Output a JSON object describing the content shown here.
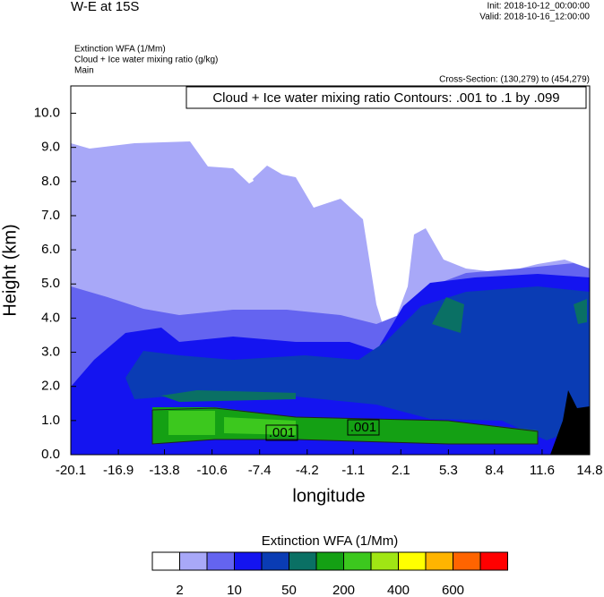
{
  "chart_data": {
    "type": "contour",
    "title": "W-E at 15S",
    "init": "Init: 2018-10-12_00:00:00",
    "valid": "Valid: 2018-10-16_12:00:00",
    "field_labels": [
      "Extinction WFA   (1/Mm)",
      "Cloud + Ice water mixing ratio   (g/kg)",
      "Main"
    ],
    "cross_section": "Cross-Section: (130,279) to (454,279)",
    "contour_note": "Cloud + Ice water mixing ratio Contours: .001 to .1 by .099",
    "contour_labels": [
      ".001",
      ".001"
    ],
    "xlabel": "longitude",
    "ylabel": "Height (km)",
    "xlim": [
      -20.1,
      14.8
    ],
    "xticks": [
      -20.1,
      -16.9,
      -13.8,
      -10.6,
      -7.4,
      -4.2,
      -1.1,
      2.1,
      5.3,
      8.4,
      11.6,
      14.8
    ],
    "ylim": [
      0,
      10.8
    ],
    "yticks": [
      {
        "value": 0,
        "label": "0.0"
      },
      {
        "value": 1,
        "label": "1.0"
      },
      {
        "value": 2,
        "label": "2.0"
      },
      {
        "value": 3,
        "label": "3.0"
      },
      {
        "value": 4,
        "label": "4.0"
      },
      {
        "value": 5,
        "label": "5.0"
      },
      {
        "value": 6,
        "label": "6.0"
      },
      {
        "value": 7,
        "label": "7.0"
      },
      {
        "value": 8,
        "label": "8.0"
      },
      {
        "value": 9,
        "label": "9.0"
      },
      {
        "value": 10,
        "label": "10.0"
      }
    ],
    "colorbar": {
      "title": "Extinction WFA  (1/Mm)",
      "colors": [
        "#ffffff",
        "#a8a8f8",
        "#6464f0",
        "#1414f0",
        "#0a3cb4",
        "#0a7064",
        "#14a014",
        "#3cc81e",
        "#a0e614",
        "#ffff00",
        "#ffb400",
        "#ff6400",
        "#ff0000"
      ],
      "labels": [
        2,
        10,
        50,
        200,
        400,
        600
      ]
    }
  }
}
